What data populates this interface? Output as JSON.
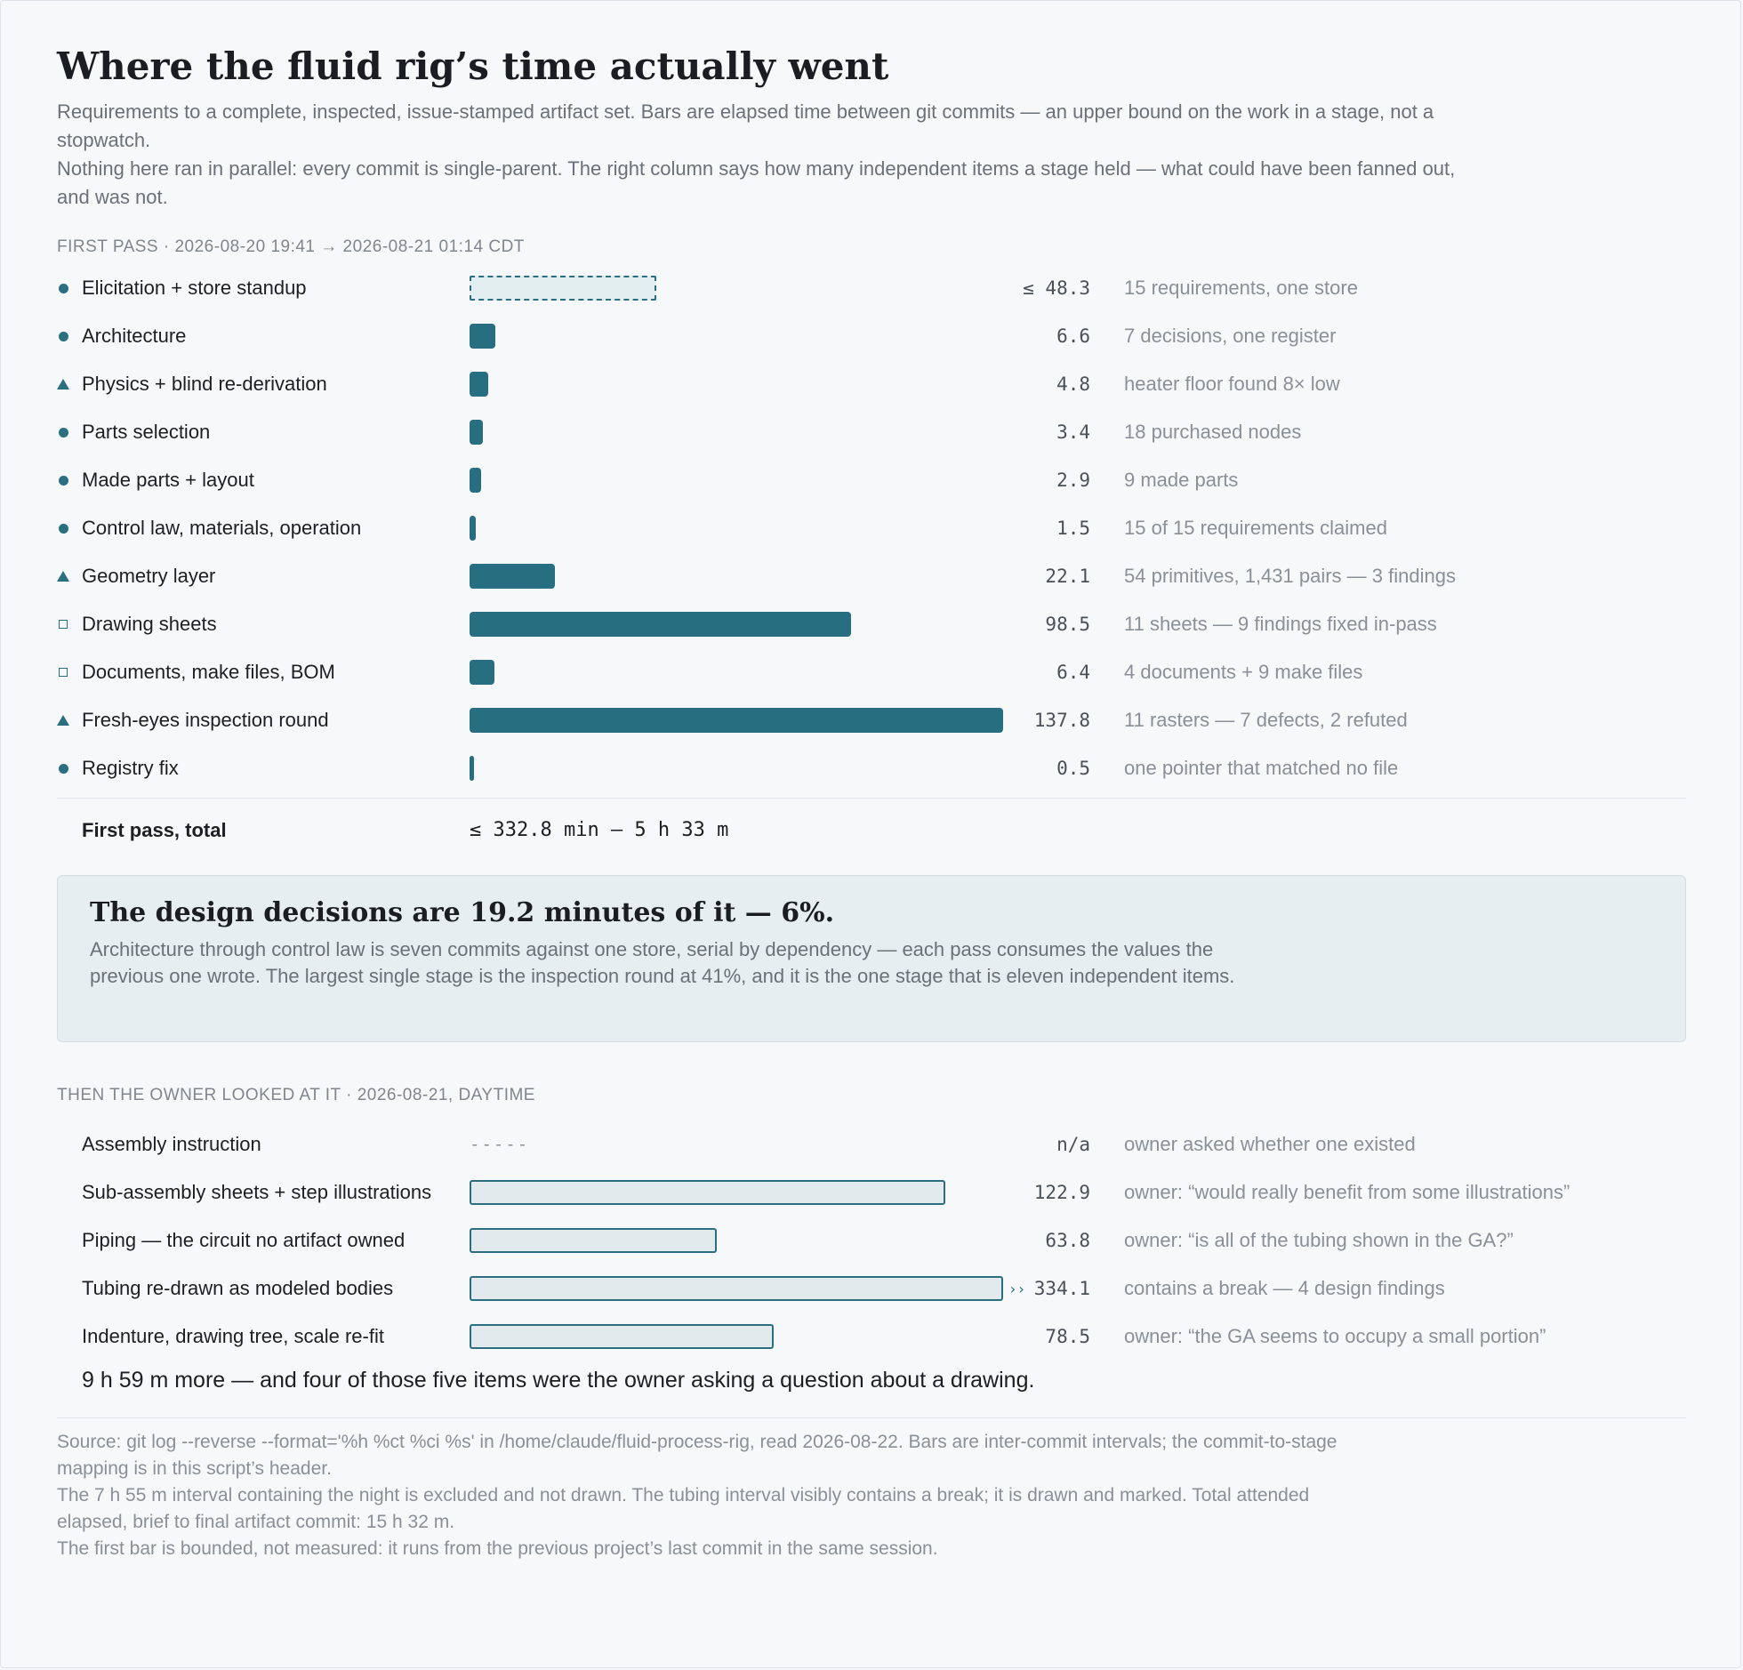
{
  "title": "Where the fluid rig’s time actually went",
  "intro": [
    "Requirements to a complete, inspected, issue-stamped artifact set. Bars are elapsed time between git commits — an upper bound on the work in a stage, not a stopwatch.",
    "Nothing here ran in parallel: every commit is single-parent. The right column says how many independent items a stage held — what could have been fanned out, and was not."
  ],
  "colors": {
    "bar": "#266e80",
    "outline_fill": "#e2eaee",
    "bound_fill": "#e3eef1"
  },
  "chart_data": [
    {
      "type": "bar",
      "orientation": "horizontal",
      "section_title": "FIRST PASS · 2026-08-20 19:41 → 2026-08-21 01:14 CDT",
      "unit": "min",
      "xlim": [
        0,
        137.8
      ],
      "marker_legend": {
        "circle": "dot",
        "triangle": "triangle",
        "square": "square"
      },
      "rows": [
        {
          "label": "Elicitation + store standup",
          "value": 48.3,
          "value_text": "≤ 48.3",
          "note": "15 requirements, one store",
          "marker": "circle",
          "style": "bound"
        },
        {
          "label": "Architecture",
          "value": 6.6,
          "value_text": "6.6",
          "note": "7 decisions, one register",
          "marker": "circle",
          "style": "solid"
        },
        {
          "label": "Physics + blind re-derivation",
          "value": 4.8,
          "value_text": "4.8",
          "note": "heater floor found 8× low",
          "marker": "triangle",
          "style": "solid"
        },
        {
          "label": "Parts selection",
          "value": 3.4,
          "value_text": "3.4",
          "note": "18 purchased nodes",
          "marker": "circle",
          "style": "solid"
        },
        {
          "label": "Made parts + layout",
          "value": 2.9,
          "value_text": "2.9",
          "note": "9 made parts",
          "marker": "circle",
          "style": "solid"
        },
        {
          "label": "Control law, materials, operation",
          "value": 1.5,
          "value_text": "1.5",
          "note": "15 of 15 requirements claimed",
          "marker": "circle",
          "style": "solid"
        },
        {
          "label": "Geometry layer",
          "value": 22.1,
          "value_text": "22.1",
          "note": "54 primitives, 1,431 pairs — 3 findings",
          "marker": "triangle",
          "style": "solid"
        },
        {
          "label": "Drawing sheets",
          "value": 98.5,
          "value_text": "98.5",
          "note": "11 sheets — 9 findings fixed in-pass",
          "marker": "square",
          "style": "solid"
        },
        {
          "label": "Documents, make files, BOM",
          "value": 6.4,
          "value_text": "6.4",
          "note": "4 documents + 9 make files",
          "marker": "square",
          "style": "solid"
        },
        {
          "label": "Fresh-eyes inspection round",
          "value": 137.8,
          "value_text": "137.8",
          "note": "11 rasters — 7 defects, 2 refuted",
          "marker": "triangle",
          "style": "solid"
        },
        {
          "label": "Registry fix",
          "value": 0.5,
          "value_text": "0.5",
          "note": "one pointer that matched no file",
          "marker": "circle",
          "style": "solid"
        }
      ],
      "total_label": "First pass, total",
      "total_value": "≤ 332.8 min — 5 h 33 m"
    },
    {
      "type": "bar",
      "orientation": "horizontal",
      "section_title": "THEN THE OWNER LOOKED AT IT · 2026-08-21, DAYTIME",
      "unit": "min",
      "rows": [
        {
          "label": "Assembly instruction",
          "value": null,
          "value_text": "n/a",
          "note": "owner asked whether one existed",
          "style": "none",
          "placeholder": "-----"
        },
        {
          "label": "Sub-assembly sheets + step illustrations",
          "value": 122.9,
          "value_text": "122.9",
          "note": "owner: “would really benefit from some illustrations”",
          "style": "outline"
        },
        {
          "label": "Piping — the circuit no artifact owned",
          "value": 63.8,
          "value_text": "63.8",
          "note": "owner: “is all of the tubing shown in the GA?”",
          "style": "outline"
        },
        {
          "label": "Tubing re-drawn as modeled bodies",
          "value": 334.1,
          "value_text": "334.1",
          "note": "contains a break — 4 design findings",
          "style": "outline",
          "truncated": true,
          "break_marker": "››"
        },
        {
          "label": "Indenture, drawing tree, scale re-fit",
          "value": 78.5,
          "value_text": "78.5",
          "note": "owner: “the GA seems to occupy a small portion”",
          "style": "outline"
        }
      ]
    }
  ],
  "callout": {
    "title": "The design decisions are 19.2 minutes of it — 6%.",
    "body": "Architecture through control law is seven commits against one store, serial by dependency — each pass consumes the values the previous one wrote. The largest single stage is the inspection round at 41%, and it is the one stage that is eleven independent items."
  },
  "summary": "9 h 59 m more — and four of those five items were the owner asking a question about a drawing.",
  "footer": [
    "Source: git log --reverse --format='%h %ct %ci %s' in /home/claude/fluid-process-rig, read 2026-08-22. Bars are inter-commit intervals; the commit-to-stage mapping is in this script’s header.",
    "The 7 h 55 m interval containing the night is excluded and not drawn. The tubing interval visibly contains a break; it is drawn and marked. Total attended elapsed, brief to final artifact commit: 15 h 32 m.",
    "The first bar is bounded, not measured: it runs from the previous project’s last commit in the same session."
  ]
}
